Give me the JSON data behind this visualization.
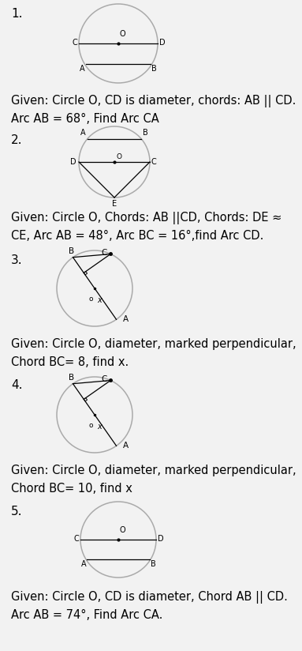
{
  "bg_color": "#f2f2f2",
  "problems": [
    {
      "number": "1.",
      "diagram_type": "circle_diameter_parallel",
      "text_lines": [
        "Given: Circle O, CD is diameter, chords: AB || CD.",
        "Arc AB = 68°, Find Arc CA"
      ]
    },
    {
      "number": "2.",
      "diagram_type": "circle_chords_pentagon",
      "text_lines": [
        "Given: Circle O, Chords: AB ||CD, Chords: DE ≈",
        "CE, Arc AB = 48°, Arc BC = 16°,find Arc CD."
      ]
    },
    {
      "number": "3.",
      "diagram_type": "circle_perpendicular_chord",
      "text_lines": [
        "Given: Circle O, diameter, marked perpendicular,",
        "Chord BC= 8, find x."
      ]
    },
    {
      "number": "4.",
      "diagram_type": "circle_perpendicular_chord",
      "text_lines": [
        "Given: Circle O, diameter, marked perpendicular,",
        "Chord BC= 10, find x"
      ]
    },
    {
      "number": "5.",
      "diagram_type": "circle_diameter_parallel",
      "text_lines": [
        "Given: Circle O, CD is diameter, Chord AB || CD.",
        "Arc AB = 74°, Find Arc CA."
      ]
    }
  ],
  "circle_color": "#aaaaaa",
  "line_color": "#000000",
  "label_fontsize": 7.0,
  "number_fontsize": 11,
  "text_fontsize": 10.5
}
